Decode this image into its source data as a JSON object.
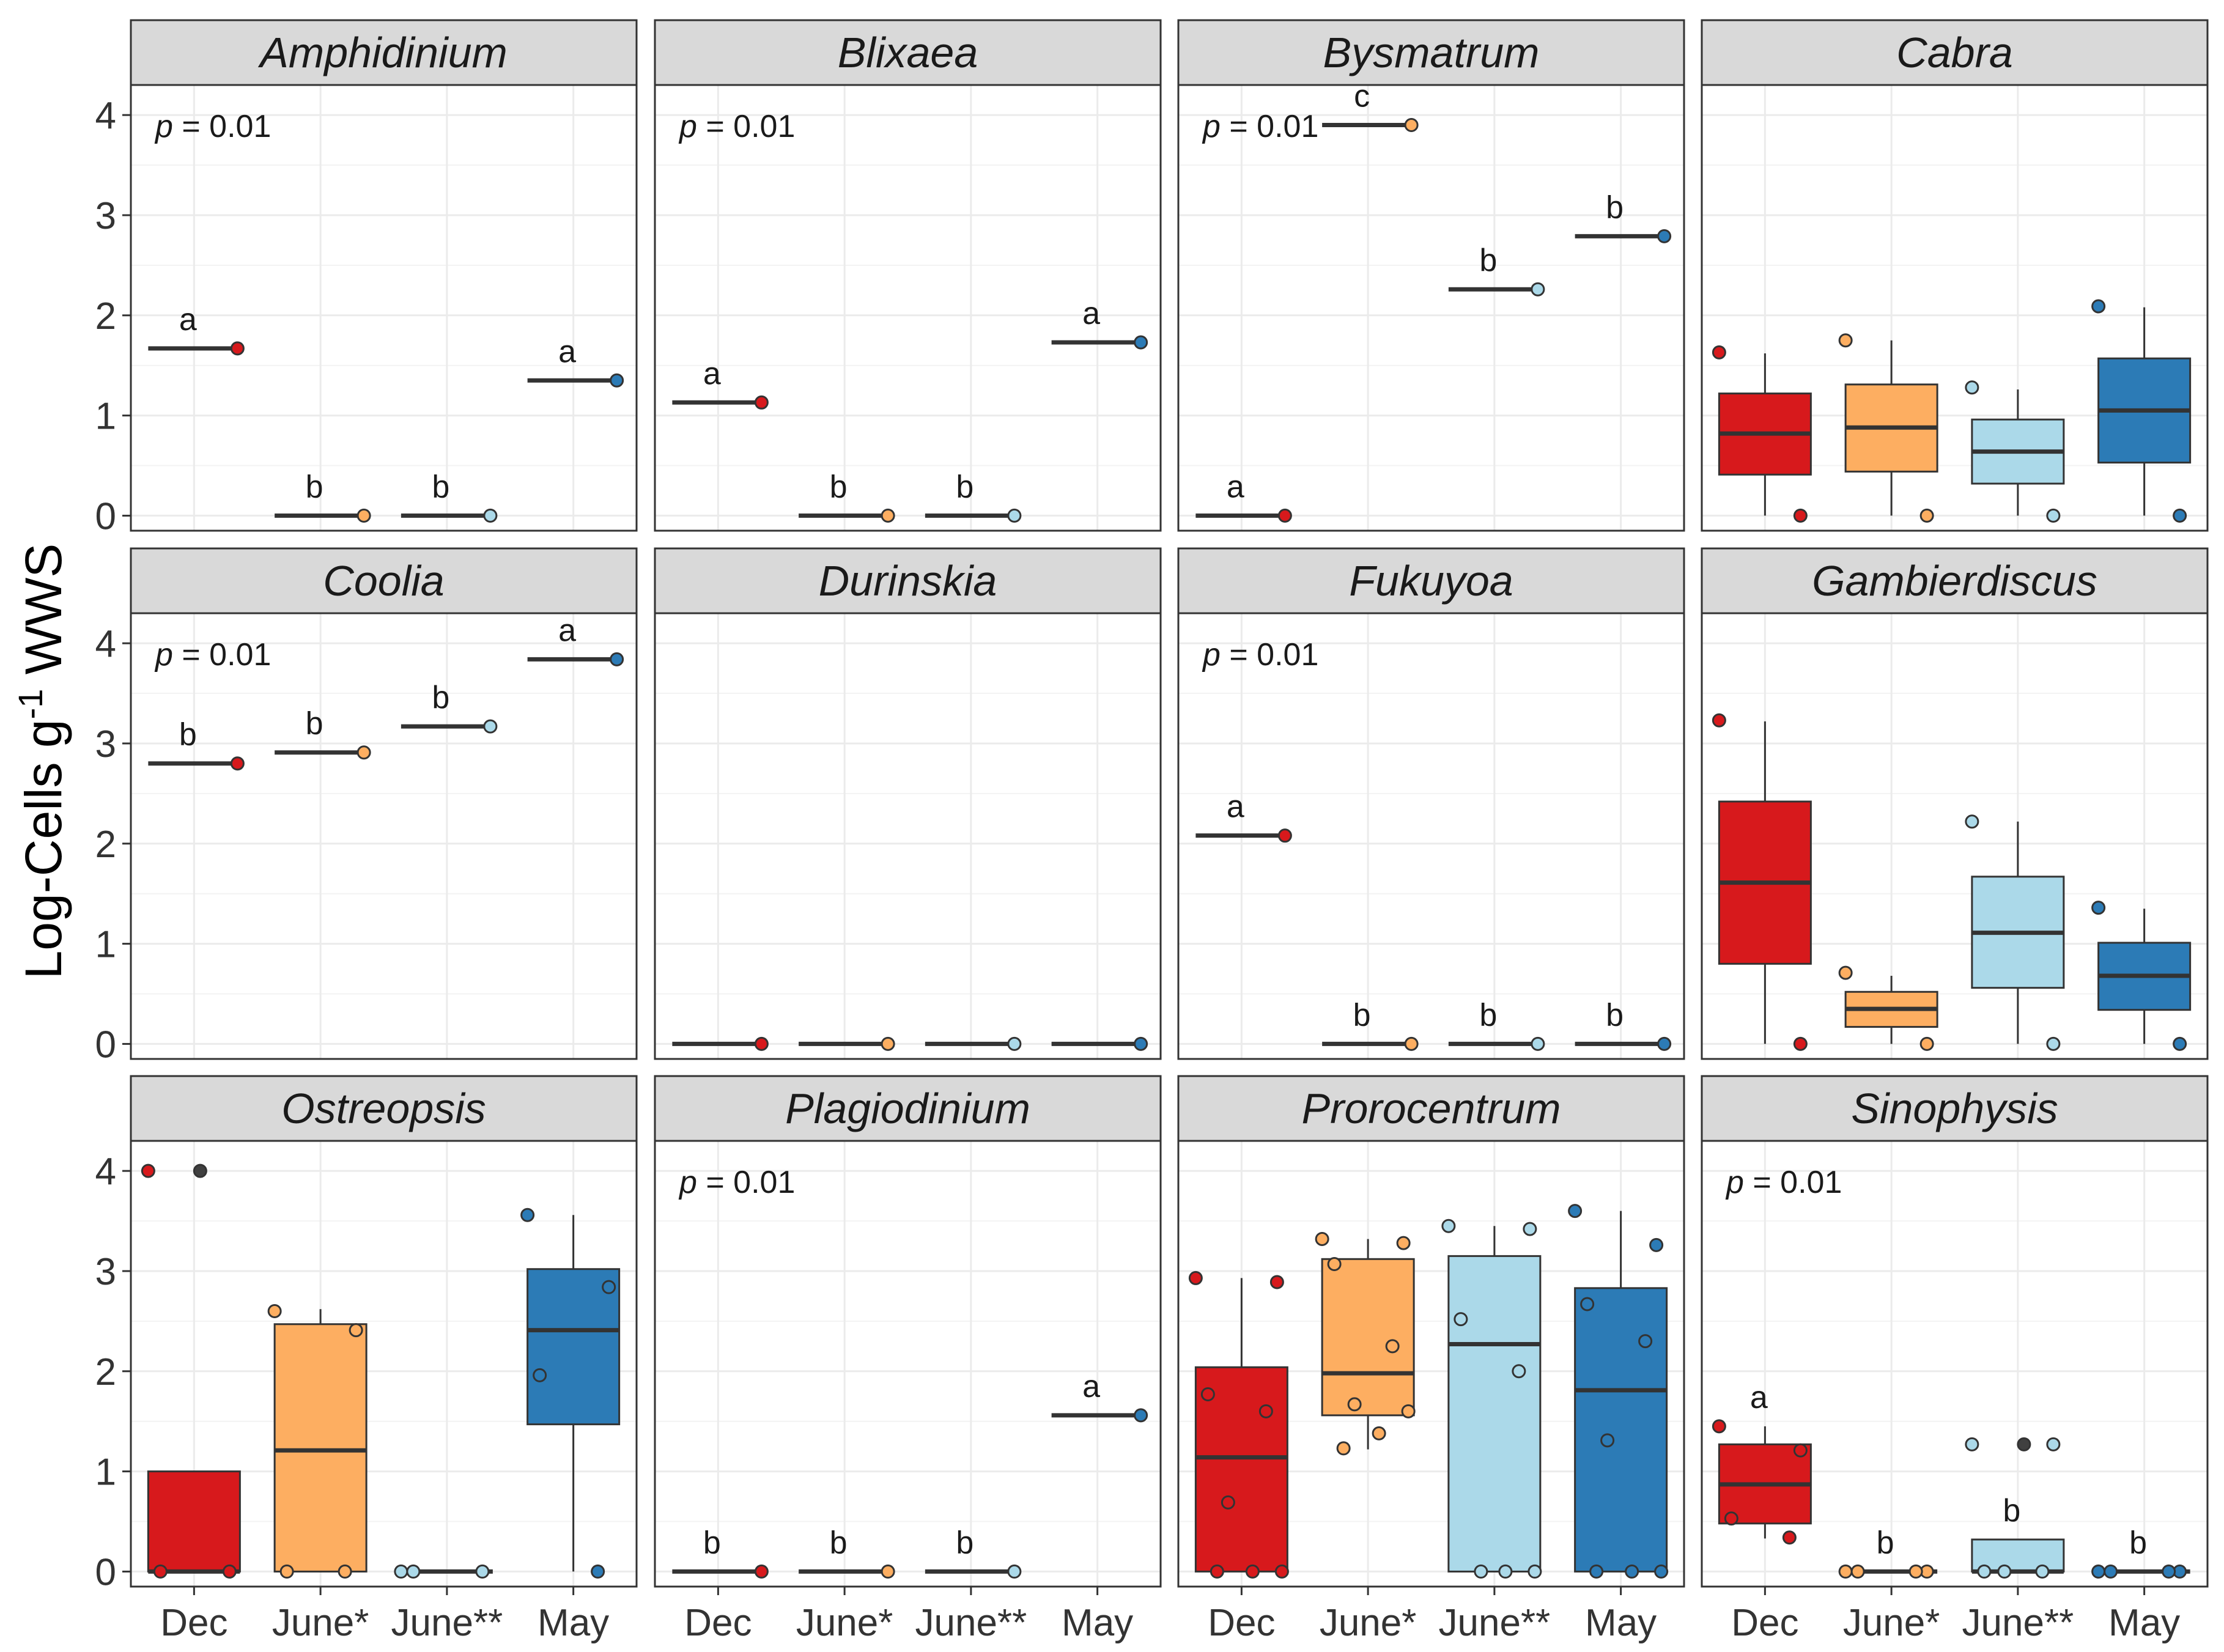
{
  "chart_data": {
    "type": "box",
    "layout": "faceted 3x4",
    "ylabel_prefix": "Log-Cells g",
    "ylabel_sup": "-1",
    "ylabel_suffix": " WWS",
    "xlabel": "",
    "ylim": [
      -0.15,
      4.3
    ],
    "yticks": [
      "0",
      "1",
      "2",
      "3",
      "4"
    ],
    "categories": [
      "Dec",
      "June*",
      "June**",
      "May"
    ],
    "colors": {
      "Dec": "#d7191c",
      "June*": "#fdae61",
      "June**": "#abd9e9",
      "May": "#2c7bb6",
      "outlier": "#404040",
      "strip": "#d9d9d9",
      "grid": "#ebebeb",
      "median": "#333333"
    },
    "panels": [
      {
        "title": "Amphidinium",
        "p_prefix": "p",
        "p_value": " = 0.01",
        "groups": [
          {
            "box": [
              1.67,
              1.67,
              1.67,
              1.67,
              1.67
            ],
            "points": [
              1.67
            ],
            "letter": "a"
          },
          {
            "box": [
              0,
              0,
              0,
              0,
              0
            ],
            "points": [
              0
            ],
            "letter": "b"
          },
          {
            "box": [
              0,
              0,
              0,
              0,
              0
            ],
            "points": [
              0
            ],
            "letter": "b"
          },
          {
            "box": [
              1.35,
              1.35,
              1.35,
              1.35,
              1.35
            ],
            "points": [
              1.35
            ],
            "letter": "a"
          }
        ]
      },
      {
        "title": "Blixaea",
        "p_prefix": "p",
        "p_value": " = 0.01",
        "groups": [
          {
            "box": [
              1.13,
              1.13,
              1.13,
              1.13,
              1.13
            ],
            "points": [
              1.13
            ],
            "letter": "a"
          },
          {
            "box": [
              0,
              0,
              0,
              0,
              0
            ],
            "points": [
              0
            ],
            "letter": "b"
          },
          {
            "box": [
              0,
              0,
              0,
              0,
              0
            ],
            "points": [
              0
            ],
            "letter": "b"
          },
          {
            "box": [
              1.73,
              1.73,
              1.73,
              1.73,
              1.73
            ],
            "points": [
              1.73
            ],
            "letter": "a"
          }
        ]
      },
      {
        "title": "Bysmatrum",
        "p_prefix": "p",
        "p_value": " = 0.01",
        "groups": [
          {
            "box": [
              0,
              0,
              0,
              0,
              0
            ],
            "points": [
              0
            ],
            "letter": "a"
          },
          {
            "box": [
              3.9,
              3.9,
              3.9,
              3.9,
              3.9
            ],
            "points": [
              3.9
            ],
            "letter": "c"
          },
          {
            "box": [
              2.26,
              2.26,
              2.26,
              2.26,
              2.26
            ],
            "points": [
              2.26
            ],
            "letter": "b"
          },
          {
            "box": [
              2.79,
              2.79,
              2.79,
              2.79,
              2.79
            ],
            "points": [
              2.79
            ],
            "letter": "b"
          }
        ]
      },
      {
        "title": "Cabra",
        "p_prefix": "",
        "p_value": "",
        "groups": [
          {
            "box": [
              0,
              0.41,
              0.82,
              1.22,
              1.62
            ],
            "points": [
              1.63,
              0
            ],
            "letter": ""
          },
          {
            "box": [
              0,
              0.44,
              0.88,
              1.31,
              1.75
            ],
            "points": [
              1.75,
              0
            ],
            "letter": ""
          },
          {
            "box": [
              0,
              0.32,
              0.64,
              0.96,
              1.26
            ],
            "points": [
              1.28,
              0
            ],
            "letter": ""
          },
          {
            "box": [
              0,
              0.53,
              1.05,
              1.57,
              2.08
            ],
            "points": [
              2.09,
              0
            ],
            "letter": ""
          }
        ]
      },
      {
        "title": "Coolia",
        "p_prefix": "p",
        "p_value": " = 0.01",
        "groups": [
          {
            "box": [
              2.8,
              2.8,
              2.8,
              2.8,
              2.8
            ],
            "points": [
              2.8
            ],
            "letter": "b"
          },
          {
            "box": [
              2.91,
              2.91,
              2.91,
              2.91,
              2.91
            ],
            "points": [
              2.91
            ],
            "letter": "b"
          },
          {
            "box": [
              3.17,
              3.17,
              3.17,
              3.17,
              3.17
            ],
            "points": [
              3.17
            ],
            "letter": "b"
          },
          {
            "box": [
              3.84,
              3.84,
              3.84,
              3.84,
              3.84
            ],
            "points": [
              3.84
            ],
            "letter": "a"
          }
        ]
      },
      {
        "title": "Durinskia",
        "p_prefix": "",
        "p_value": "",
        "groups": [
          {
            "box": [
              0,
              0,
              0,
              0,
              0
            ],
            "points": [
              0
            ],
            "letter": ""
          },
          {
            "box": [
              0,
              0,
              0,
              0,
              0
            ],
            "points": [
              0
            ],
            "letter": ""
          },
          {
            "box": [
              0,
              0,
              0,
              0,
              0
            ],
            "points": [
              0
            ],
            "letter": ""
          },
          {
            "box": [
              0,
              0,
              0,
              0,
              0
            ],
            "points": [
              0
            ],
            "letter": ""
          }
        ]
      },
      {
        "title": "Fukuyoa",
        "p_prefix": "p",
        "p_value": " = 0.01",
        "groups": [
          {
            "box": [
              2.08,
              2.08,
              2.08,
              2.08,
              2.08
            ],
            "points": [
              2.08
            ],
            "letter": "a"
          },
          {
            "box": [
              0,
              0,
              0,
              0,
              0
            ],
            "points": [
              0
            ],
            "letter": "b"
          },
          {
            "box": [
              0,
              0,
              0,
              0,
              0
            ],
            "points": [
              0
            ],
            "letter": "b"
          },
          {
            "box": [
              0,
              0,
              0,
              0,
              0
            ],
            "points": [
              0
            ],
            "letter": "b"
          }
        ]
      },
      {
        "title": "Gambierdiscus",
        "p_prefix": "",
        "p_value": "",
        "groups": [
          {
            "box": [
              0,
              0.8,
              1.61,
              2.42,
              3.22
            ],
            "points": [
              3.23,
              0
            ],
            "letter": ""
          },
          {
            "box": [
              0,
              0.17,
              0.35,
              0.52,
              0.68
            ],
            "points": [
              0.71,
              0
            ],
            "letter": ""
          },
          {
            "box": [
              0,
              0.56,
              1.11,
              1.67,
              2.22
            ],
            "points": [
              2.22,
              0
            ],
            "letter": ""
          },
          {
            "box": [
              0,
              0.34,
              0.68,
              1.01,
              1.35
            ],
            "points": [
              1.36,
              0
            ],
            "letter": ""
          }
        ]
      },
      {
        "title": "Ostreopsis",
        "p_prefix": "",
        "p_value": "",
        "groups": [
          {
            "box": [
              0,
              0,
              0,
              1.0,
              1.0
            ],
            "points": [
              4.0,
              0,
              0
            ],
            "outliers": [
              4.0
            ],
            "letter": ""
          },
          {
            "box": [
              0,
              0,
              1.21,
              2.47,
              2.62
            ],
            "points": [
              2.6,
              2.41,
              0,
              0
            ],
            "letter": ""
          },
          {
            "box": [
              0,
              0,
              0,
              0,
              0
            ],
            "points": [
              0,
              0,
              0
            ],
            "letter": ""
          },
          {
            "box": [
              0,
              1.47,
              2.41,
              3.02,
              3.56
            ],
            "points": [
              3.56,
              2.84,
              1.96,
              0
            ],
            "letter": ""
          }
        ]
      },
      {
        "title": "Plagiodinium",
        "p_prefix": "p",
        "p_value": " = 0.01",
        "groups": [
          {
            "box": [
              0,
              0,
              0,
              0,
              0
            ],
            "points": [
              0
            ],
            "letter": "b"
          },
          {
            "box": [
              0,
              0,
              0,
              0,
              0
            ],
            "points": [
              0
            ],
            "letter": "b"
          },
          {
            "box": [
              0,
              0,
              0,
              0,
              0
            ],
            "points": [
              0
            ],
            "letter": "b"
          },
          {
            "box": [
              1.56,
              1.56,
              1.56,
              1.56,
              1.56
            ],
            "points": [
              1.56
            ],
            "letter": "a"
          }
        ]
      },
      {
        "title": "Prorocentrum",
        "p_prefix": "",
        "p_value": "",
        "groups": [
          {
            "box": [
              0,
              0,
              1.14,
              2.04,
              2.93
            ],
            "points": [
              2.93,
              2.89,
              1.77,
              1.6,
              0.69,
              0,
              0,
              0
            ],
            "letter": ""
          },
          {
            "box": [
              1.22,
              1.56,
              1.98,
              3.12,
              3.32
            ],
            "points": [
              3.32,
              3.28,
              3.07,
              2.25,
              1.67,
              1.6,
              1.38,
              1.23
            ],
            "letter": ""
          },
          {
            "box": [
              0,
              0,
              2.27,
              3.15,
              3.45
            ],
            "points": [
              3.45,
              3.42,
              2.52,
              2.0,
              0,
              0,
              0
            ],
            "letter": ""
          },
          {
            "box": [
              0,
              0,
              1.81,
              2.83,
              3.6
            ],
            "points": [
              3.6,
              3.26,
              2.67,
              2.3,
              1.31,
              0,
              0,
              0
            ],
            "letter": ""
          }
        ]
      },
      {
        "title": "Sinophysis",
        "p_prefix": "p",
        "p_value": " = 0.01",
        "groups": [
          {
            "box": [
              0.33,
              0.48,
              0.87,
              1.27,
              1.45
            ],
            "points": [
              1.45,
              1.21,
              0.53,
              0.34
            ],
            "letter": "a"
          },
          {
            "box": [
              0,
              0,
              0,
              0,
              0
            ],
            "points": [
              0,
              0,
              0,
              0
            ],
            "letter": "b"
          },
          {
            "box": [
              0,
              0,
              0,
              0.32,
              0.32
            ],
            "points": [
              1.27,
              1.27,
              0,
              0,
              0
            ],
            "outliers": [
              1.27
            ],
            "letter": "b"
          },
          {
            "box": [
              0,
              0,
              0,
              0,
              0
            ],
            "points": [
              0,
              0,
              0,
              0
            ],
            "letter": "b"
          }
        ]
      }
    ]
  }
}
